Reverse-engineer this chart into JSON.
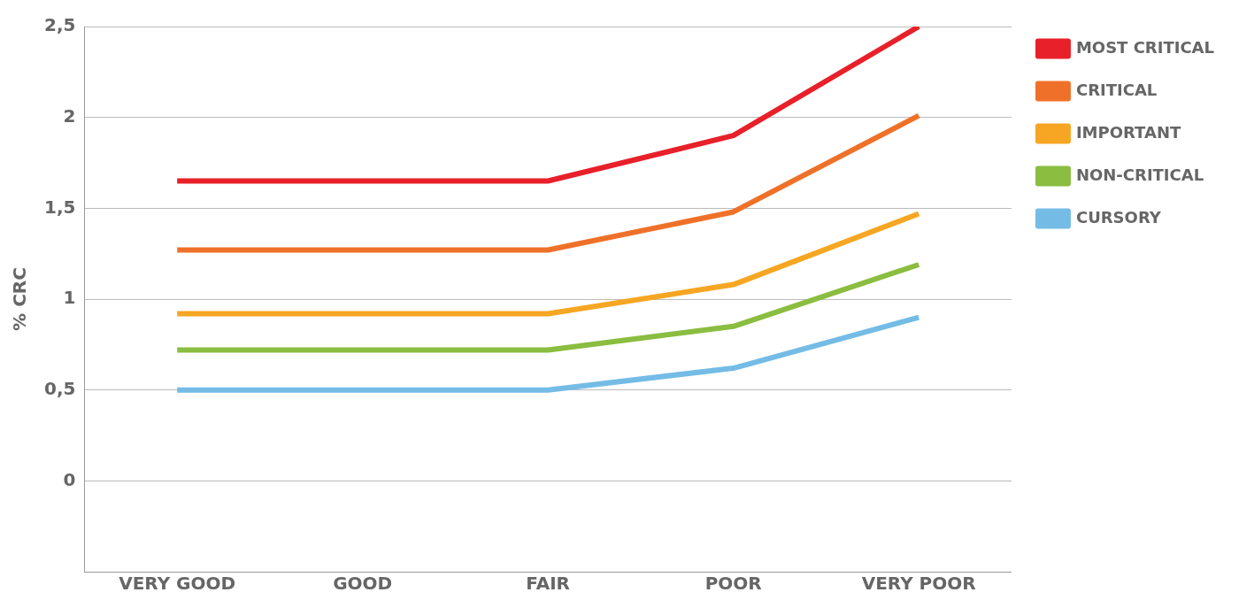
{
  "chart_data": {
    "type": "line",
    "ylabel": "% CRC",
    "categories": [
      "VERY GOOD",
      "GOOD",
      "FAIR",
      "POOR",
      "VERY POOR"
    ],
    "series": [
      {
        "name": "MOST CRITICAL",
        "color": "#e8202a",
        "values": [
          1.65,
          1.65,
          1.65,
          1.9,
          2.5
        ]
      },
      {
        "name": "CRITICAL",
        "color": "#ef7129",
        "values": [
          1.27,
          1.27,
          1.27,
          1.48,
          2.01
        ]
      },
      {
        "name": "IMPORTANT",
        "color": "#f6a622",
        "values": [
          0.92,
          0.92,
          0.92,
          1.08,
          1.47
        ]
      },
      {
        "name": "NON-CRITICAL",
        "color": "#8abd40",
        "values": [
          0.72,
          0.72,
          0.72,
          0.85,
          1.19
        ]
      },
      {
        "name": "CURSORY",
        "color": "#74bce6",
        "values": [
          0.5,
          0.5,
          0.5,
          0.62,
          0.9
        ]
      }
    ],
    "ylim": [
      -0.5,
      2.5
    ],
    "yticks": [
      0,
      {
        "value": 0.5,
        "label": "0,5"
      },
      1,
      {
        "value": 1.5,
        "label": "1,5"
      },
      2,
      {
        "value": 2.5,
        "label": "2,5"
      }
    ],
    "grid": "y",
    "legend": "top right",
    "marker": "none",
    "line_style": "solid"
  }
}
